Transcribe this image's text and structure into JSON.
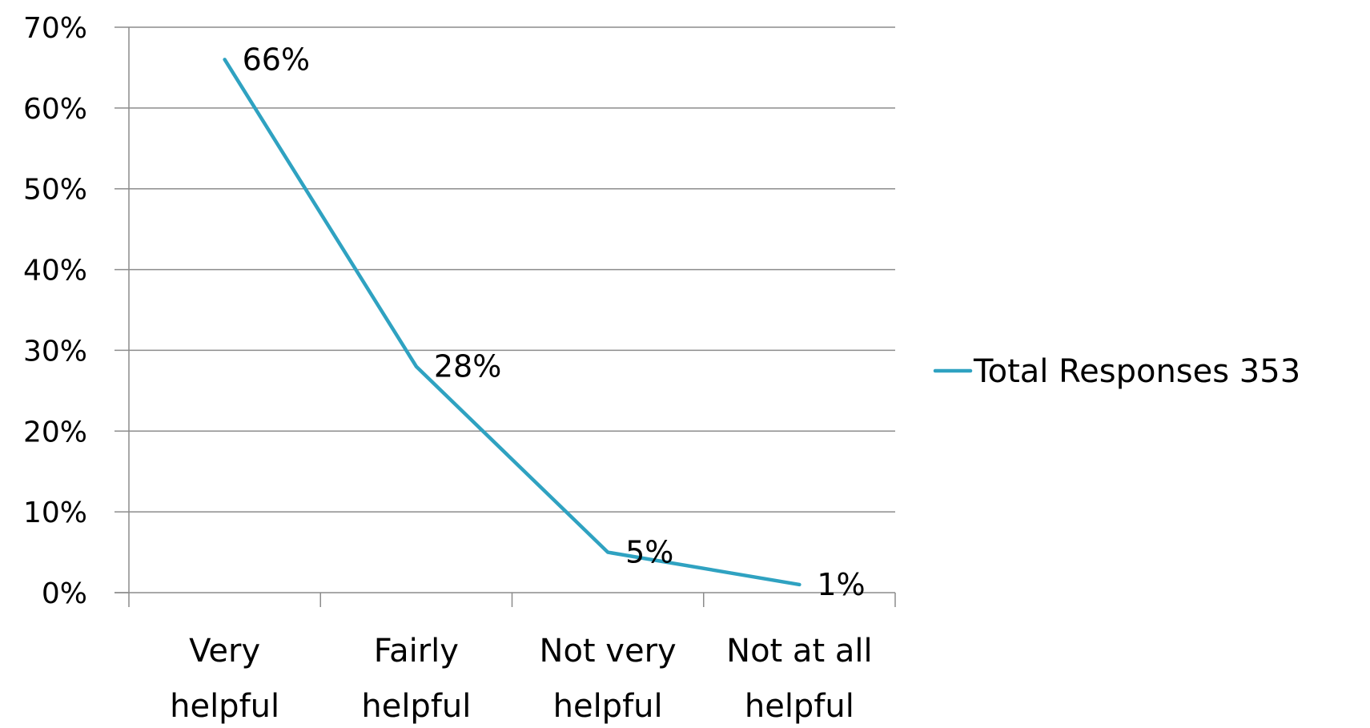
{
  "chart_data": {
    "type": "line",
    "title": "",
    "xlabel": "",
    "ylabel": "",
    "categories": [
      [
        "Very",
        "helpful"
      ],
      [
        "Fairly",
        "helpful"
      ],
      [
        "Not very",
        "helpful"
      ],
      [
        "Not at all",
        "helpful"
      ]
    ],
    "series": [
      {
        "name": "Total Responses 353",
        "values": [
          66,
          28,
          5,
          1
        ],
        "labels": [
          "66%",
          "28%",
          "5%",
          "1%"
        ],
        "color": "#2fa2c1"
      }
    ],
    "ylim": [
      0,
      70
    ],
    "yticks": [
      0,
      10,
      20,
      30,
      40,
      50,
      60,
      70
    ],
    "ytick_labels": [
      "0%",
      "10%",
      "20%",
      "30%",
      "40%",
      "50%",
      "60%",
      "70%"
    ],
    "grid": true,
    "legend_position": "right"
  }
}
